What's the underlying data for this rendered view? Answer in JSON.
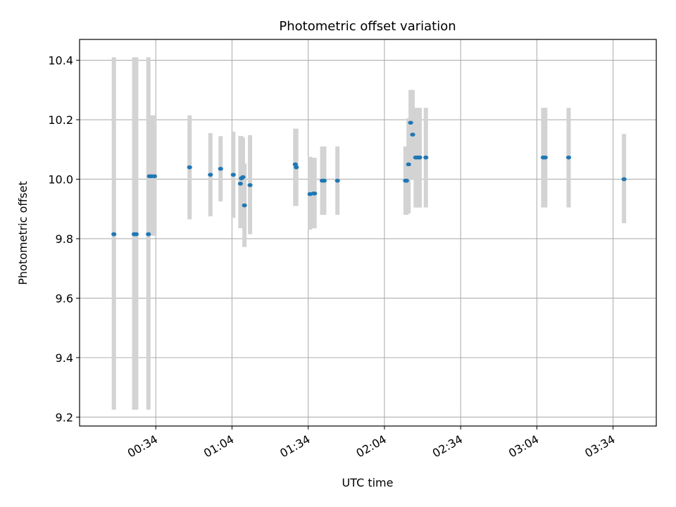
{
  "chart_data": {
    "type": "scatter",
    "title": "Photometric offset variation",
    "xlabel": "UTC time",
    "ylabel": "Photometric offset",
    "ylim": [
      9.17,
      10.47
    ],
    "xlim": [
      "00:04",
      "03:51"
    ],
    "x_ticks": [
      "00:34",
      "01:04",
      "01:34",
      "02:04",
      "02:34",
      "03:04",
      "03:34"
    ],
    "y_ticks": [
      9.2,
      9.4,
      9.6,
      9.8,
      10.0,
      10.2,
      10.4
    ],
    "grid": true,
    "legend": "none",
    "marker_color": "#1f77b4",
    "errorbar_color": "#d3d3d3",
    "series": [
      {
        "name": "",
        "points": [
          {
            "x": "00:17:30",
            "y": 9.815,
            "ylo": 9.225,
            "yhi": 10.41
          },
          {
            "x": "00:25:30",
            "y": 9.815,
            "ylo": 9.225,
            "yhi": 10.41
          },
          {
            "x": "00:26:18",
            "y": 9.815,
            "ylo": 9.225,
            "yhi": 10.41
          },
          {
            "x": "00:31:06",
            "y": 9.815,
            "ylo": 9.225,
            "yhi": 10.41
          },
          {
            "x": "00:31:30",
            "y": 10.01,
            "ylo": 9.81,
            "yhi": 10.215
          },
          {
            "x": "00:32:18",
            "y": 10.01,
            "ylo": 9.81,
            "yhi": 10.215
          },
          {
            "x": "00:33:30",
            "y": 10.01,
            "ylo": 9.81,
            "yhi": 10.215
          },
          {
            "x": "00:47:18",
            "y": 10.04,
            "ylo": 9.865,
            "yhi": 10.215
          },
          {
            "x": "00:55:30",
            "y": 10.015,
            "ylo": 9.875,
            "yhi": 10.155
          },
          {
            "x": "00:59:30",
            "y": 10.035,
            "ylo": 9.925,
            "yhi": 10.145
          },
          {
            "x": "01:04:30",
            "y": 10.015,
            "ylo": 9.87,
            "yhi": 10.16
          },
          {
            "x": "01:07:18",
            "y": 9.985,
            "ylo": 9.835,
            "yhi": 10.145
          },
          {
            "x": "01:07:42",
            "y": 10.003,
            "ylo": 9.86,
            "yhi": 10.145
          },
          {
            "x": "01:08:18",
            "y": 10.007,
            "ylo": 9.85,
            "yhi": 10.14
          },
          {
            "x": "01:08:54",
            "y": 9.912,
            "ylo": 9.772,
            "yhi": 10.052
          },
          {
            "x": "01:11:06",
            "y": 9.98,
            "ylo": 9.815,
            "yhi": 10.148
          },
          {
            "x": "01:28:54",
            "y": 10.05,
            "ylo": 9.91,
            "yhi": 10.17
          },
          {
            "x": "01:29:18",
            "y": 10.04,
            "ylo": 9.91,
            "yhi": 10.17
          },
          {
            "x": "01:34:42",
            "y": 9.95,
            "ylo": 9.83,
            "yhi": 10.075
          },
          {
            "x": "01:36:06",
            "y": 9.952,
            "ylo": 9.835,
            "yhi": 10.072
          },
          {
            "x": "01:36:30",
            "y": 9.952,
            "ylo": 9.835,
            "yhi": 10.072
          },
          {
            "x": "01:39:30",
            "y": 9.995,
            "ylo": 9.88,
            "yhi": 10.11
          },
          {
            "x": "01:40:18",
            "y": 9.995,
            "ylo": 9.88,
            "yhi": 10.11
          },
          {
            "x": "01:45:30",
            "y": 9.995,
            "ylo": 9.88,
            "yhi": 10.11
          },
          {
            "x": "02:12:18",
            "y": 9.995,
            "ylo": 9.88,
            "yhi": 10.11
          },
          {
            "x": "02:12:42",
            "y": 9.995,
            "ylo": 9.88,
            "yhi": 10.11
          },
          {
            "x": "02:13:30",
            "y": 10.05,
            "ylo": 9.885,
            "yhi": 10.205
          },
          {
            "x": "02:14:18",
            "y": 10.19,
            "ylo": 10.08,
            "yhi": 10.3
          },
          {
            "x": "02:15:06",
            "y": 10.15,
            "ylo": 10.0,
            "yhi": 10.3
          },
          {
            "x": "02:16:18",
            "y": 10.073,
            "ylo": 9.905,
            "yhi": 10.24
          },
          {
            "x": "02:17:06",
            "y": 10.073,
            "ylo": 9.905,
            "yhi": 10.24
          },
          {
            "x": "02:17:54",
            "y": 10.073,
            "ylo": 9.905,
            "yhi": 10.24
          },
          {
            "x": "02:20:18",
            "y": 10.073,
            "ylo": 9.905,
            "yhi": 10.24
          },
          {
            "x": "03:06:30",
            "y": 10.073,
            "ylo": 9.905,
            "yhi": 10.24
          },
          {
            "x": "03:07:18",
            "y": 10.073,
            "ylo": 9.905,
            "yhi": 10.24
          },
          {
            "x": "03:16:30",
            "y": 10.073,
            "ylo": 9.905,
            "yhi": 10.24
          },
          {
            "x": "03:38:18",
            "y": 10.0,
            "ylo": 9.852,
            "yhi": 10.152
          }
        ]
      }
    ]
  }
}
